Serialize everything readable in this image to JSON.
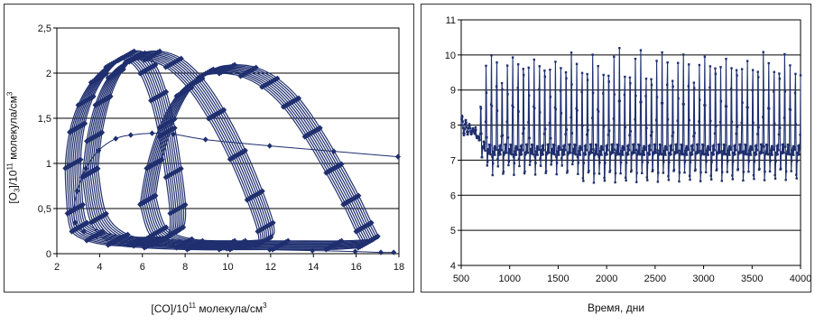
{
  "chart_data": [
    {
      "type": "scatter",
      "mode": "line-with-markers",
      "xlabel_parts": [
        "[CO]/10",
        "11",
        " молекула/см",
        "3"
      ],
      "ylabel_parts": [
        "[O",
        "3",
        "]/10",
        "11",
        " молекула/см",
        "3"
      ],
      "xlim": [
        2,
        18
      ],
      "ylim": [
        0,
        2.5
      ],
      "xticks": [
        "2",
        "4",
        "6",
        "8",
        "10",
        "12",
        "14",
        "16",
        "18"
      ],
      "yticks": [
        "0",
        "0,5",
        "1",
        "1,5",
        "2",
        "2,5"
      ],
      "grid": "horizontal",
      "series_color": "#1f2f6f",
      "series": [
        {
          "description": "transient trajectory from start point",
          "x": [
            18,
            15,
            12,
            9,
            7.5,
            6.5,
            5.5,
            4.8,
            4.0,
            3.4,
            3.0,
            2.85,
            2.9,
            3.3,
            3.9
          ],
          "y": [
            1.08,
            1.14,
            1.2,
            1.27,
            1.33,
            1.34,
            1.32,
            1.28,
            1.15,
            0.95,
            0.7,
            0.5,
            0.35,
            0.25,
            0.2
          ]
        },
        {
          "description": "limit cycle A (CO ~3-8)",
          "x": [
            2.9,
            2.8,
            3.0,
            3.4,
            4.0,
            4.7,
            5.3,
            5.8,
            6.3,
            6.8,
            7.2,
            7.5,
            7.7,
            7.6,
            7.0,
            6.0,
            4.8,
            3.8,
            3.1,
            2.9
          ],
          "y": [
            0.5,
            1.0,
            1.4,
            1.7,
            1.95,
            2.12,
            2.2,
            2.18,
            2.05,
            1.75,
            1.35,
            0.9,
            0.5,
            0.25,
            0.16,
            0.14,
            0.15,
            0.2,
            0.3,
            0.5
          ]
        },
        {
          "description": "limit cycle B (CO ~4-12)",
          "x": [
            3.6,
            3.8,
            4.2,
            4.8,
            5.6,
            6.5,
            7.5,
            8.5,
            9.5,
            10.5,
            11.3,
            11.8,
            11.7,
            10.5,
            8.5,
            6.5,
            5.0,
            4.0,
            3.6
          ],
          "y": [
            0.9,
            1.3,
            1.7,
            2.0,
            2.17,
            2.2,
            2.12,
            1.9,
            1.55,
            1.1,
            0.65,
            0.3,
            0.14,
            0.1,
            0.1,
            0.12,
            0.17,
            0.4,
            0.9
          ]
        },
        {
          "description": "limit cycle C (CO ~6-17)",
          "x": [
            6.3,
            6.6,
            7.2,
            8.0,
            9.0,
            10.0,
            11.0,
            12.0,
            13.0,
            14.0,
            15.0,
            15.8,
            16.4,
            16.7,
            16.5,
            15.0,
            12.5,
            10.0,
            8.0,
            6.8,
            6.3
          ],
          "y": [
            0.6,
            1.0,
            1.45,
            1.8,
            2.0,
            2.05,
            2.02,
            1.9,
            1.68,
            1.35,
            0.95,
            0.6,
            0.3,
            0.15,
            0.12,
            0.1,
            0.1,
            0.1,
            0.12,
            0.25,
            0.6
          ]
        },
        {
          "description": "lower return segment to axis",
          "x": [
            6.5,
            8,
            10,
            12,
            14,
            16,
            17.2,
            17.8
          ],
          "y": [
            0.1,
            0.08,
            0.06,
            0.05,
            0.04,
            0.03,
            0.02,
            0.02
          ]
        }
      ]
    },
    {
      "type": "line",
      "mode": "line-with-markers",
      "xlabel": "Время, дни",
      "ylabel": "",
      "xlim": [
        500,
        4000
      ],
      "ylim": [
        4,
        11
      ],
      "xticks": [
        "500",
        "1000",
        "1500",
        "2000",
        "2500",
        "3000",
        "3500",
        "4000"
      ],
      "yticks": [
        "4",
        "5",
        "6",
        "7",
        "8",
        "9",
        "10",
        "11"
      ],
      "grid": "horizontal",
      "series_color": "#1f2f6f",
      "oscillation": {
        "start_day": 500,
        "end_day": 4000,
        "initial_value": 8.0,
        "damped_until_day": 640,
        "growth_until_day": 760,
        "period_days": 55,
        "typical_peak": [
          9.8,
          10.4
        ],
        "typical_trough": [
          6.3,
          6.9
        ],
        "baseline": 7.3
      }
    }
  ]
}
